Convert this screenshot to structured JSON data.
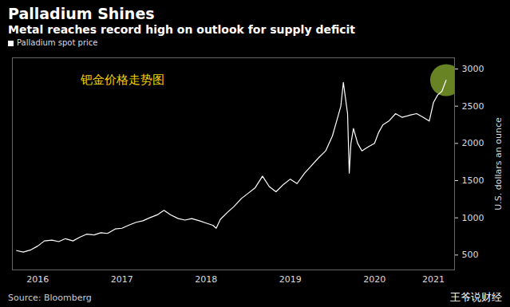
{
  "chart_data": {
    "type": "line",
    "title": "Palladium Shines",
    "subtitle": "Metal reaches record high on outlook for supply deficit",
    "y_label": "U.S. dollars an ounce",
    "caption": "Source: Bloomberg",
    "annotations": [
      "钯金价格走势图",
      "王爷说财经"
    ],
    "legend": "top-left",
    "grid": false,
    "x": [
      2016.25,
      2016.33,
      2016.42,
      2016.5,
      2016.58,
      2016.67,
      2016.75,
      2016.83,
      2016.92,
      2017.0,
      2017.08,
      2017.17,
      2017.25,
      2017.33,
      2017.42,
      2017.5,
      2017.58,
      2017.67,
      2017.75,
      2017.83,
      2017.92,
      2018.0,
      2018.08,
      2018.17,
      2018.25,
      2018.33,
      2018.42,
      2018.5,
      2018.58,
      2018.62,
      2018.67,
      2018.75,
      2018.83,
      2018.92,
      2019.0,
      2019.08,
      2019.17,
      2019.25,
      2019.33,
      2019.42,
      2019.5,
      2019.58,
      2019.67,
      2019.75,
      2019.83,
      2019.92,
      2020.0,
      2020.05,
      2020.1,
      2020.13,
      2020.15,
      2020.18,
      2020.2,
      2020.22,
      2020.25,
      2020.3,
      2020.35,
      2020.42,
      2020.5,
      2020.55,
      2020.6,
      2020.67,
      2020.75,
      2020.83,
      2020.92,
      2021.0,
      2021.08,
      2021.15,
      2021.2,
      2021.25,
      2021.3,
      2021.35
    ],
    "series": [
      {
        "name": "Palladium spot price",
        "color": "#ffffff",
        "values": [
          560,
          540,
          570,
          620,
          690,
          700,
          680,
          720,
          690,
          740,
          780,
          770,
          800,
          790,
          850,
          860,
          900,
          940,
          960,
          1000,
          1040,
          1100,
          1040,
          990,
          970,
          990,
          960,
          930,
          900,
          860,
          980,
          1070,
          1150,
          1260,
          1330,
          1400,
          1560,
          1420,
          1350,
          1450,
          1520,
          1460,
          1600,
          1700,
          1800,
          1900,
          2100,
          2300,
          2500,
          2820,
          2650,
          2400,
          1600,
          2000,
          2200,
          2000,
          1900,
          1950,
          2000,
          2150,
          2250,
          2300,
          2400,
          2350,
          2380,
          2400,
          2350,
          2300,
          2550,
          2650,
          2700,
          2850
        ]
      }
    ],
    "xlim": [
      2016.2,
      2021.45
    ],
    "xticks": [
      {
        "value": 2016.5,
        "label": "2016"
      },
      {
        "value": 2017.5,
        "label": "2017"
      },
      {
        "value": 2018.5,
        "label": "2018"
      },
      {
        "value": 2019.5,
        "label": "2019"
      },
      {
        "value": 2020.5,
        "label": "2020"
      },
      {
        "value": 2021.2,
        "label": "2021"
      }
    ],
    "ylim": [
      300,
      3150
    ],
    "yticks": [
      500,
      1000,
      1500,
      2000,
      2500,
      3000
    ]
  }
}
